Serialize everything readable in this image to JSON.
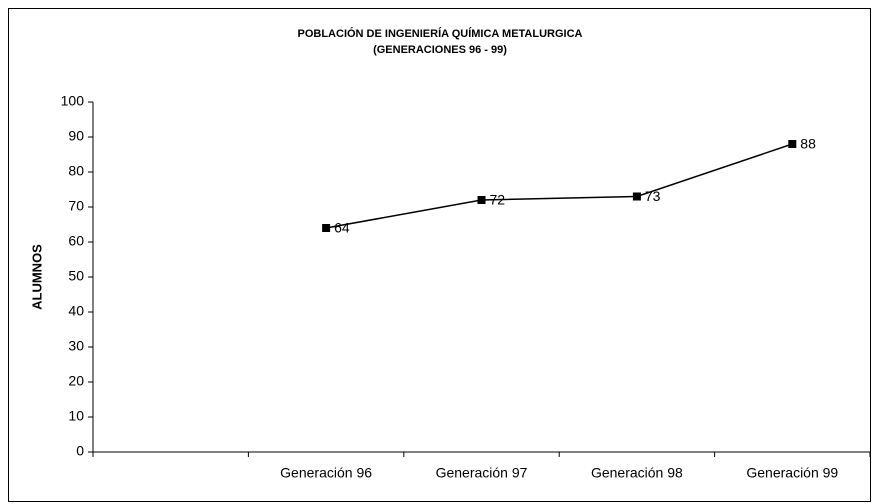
{
  "chart_data": {
    "type": "line",
    "title": "POBLACIÓN DE INGENIERÍA QUÍMICA METALURGICA",
    "subtitle": "(GENERACIONES 96 - 99)",
    "y_label": "ALUMNOS",
    "categories": [
      null,
      "Generación 96",
      "Generación 97",
      "Generación 98",
      "Generación 99"
    ],
    "series": [
      {
        "name": "Alumnos",
        "color": "#000000",
        "values": [
          null,
          64,
          72,
          73,
          88
        ]
      }
    ],
    "ylim": [
      0,
      100
    ],
    "yticks": [
      0,
      10,
      20,
      30,
      40,
      50,
      60,
      70,
      80,
      90,
      100
    ],
    "grid": false
  }
}
